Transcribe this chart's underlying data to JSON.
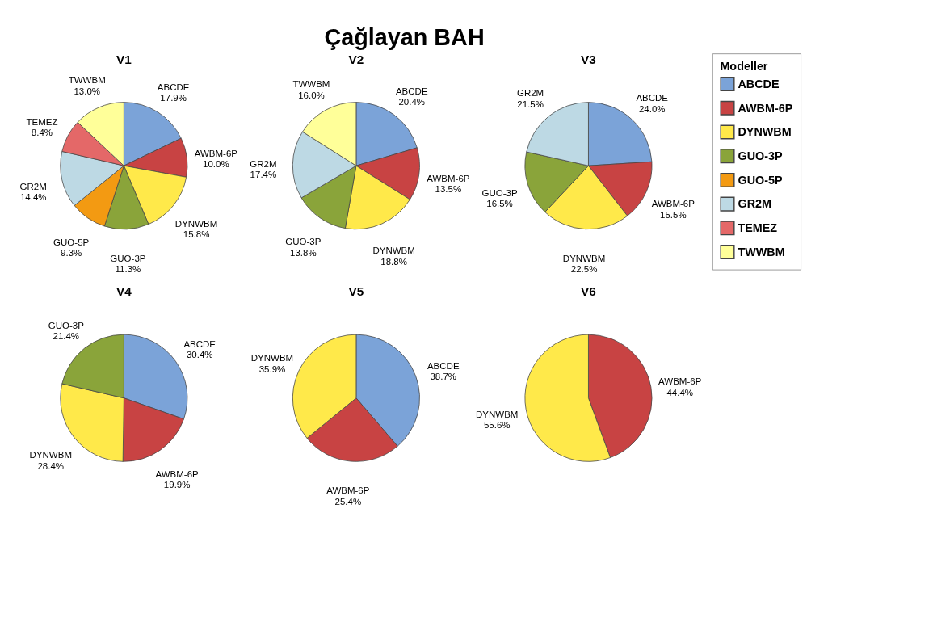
{
  "chart_data": [
    {
      "type": "pie",
      "title": "V1",
      "annotations": [
        "Çağlayan BAH"
      ],
      "legend": "right",
      "legend_title": "Modeller",
      "categories": [
        "ABCDE",
        "AWBM-6P",
        "DYNWBM",
        "GUO-3P",
        "GUO-5P",
        "GR2M",
        "TEMEZ",
        "TWWBM"
      ],
      "values": [
        17.9,
        10.0,
        15.8,
        11.3,
        9.3,
        14.4,
        8.4,
        13.0
      ],
      "value_labels": [
        "17.9%",
        "10.0%",
        "15.8%",
        "11.3%",
        "9.3%",
        "14.4%",
        "8.4%",
        "13.0%"
      ],
      "colors": [
        "#7ba3d8",
        "#c84343",
        "#ffe94a",
        "#8aa43a",
        "#f39a12",
        "#bdd9e4",
        "#e46868",
        "#ffff99"
      ]
    },
    {
      "type": "pie",
      "title": "V2",
      "categories": [
        "ABCDE",
        "AWBM-6P",
        "DYNWBM",
        "GUO-3P",
        "GR2M",
        "TWWBM"
      ],
      "values": [
        20.4,
        13.5,
        18.8,
        13.8,
        17.4,
        16.0
      ],
      "value_labels": [
        "20.4%",
        "13.5%",
        "18.8%",
        "13.8%",
        "17.4%",
        "16.0%"
      ],
      "colors": [
        "#7ba3d8",
        "#c84343",
        "#ffe94a",
        "#8aa43a",
        "#bdd9e4",
        "#ffff99"
      ]
    },
    {
      "type": "pie",
      "title": "V3",
      "categories": [
        "ABCDE",
        "AWBM-6P",
        "DYNWBM",
        "GUO-3P",
        "GR2M"
      ],
      "values": [
        24.0,
        15.5,
        22.5,
        16.5,
        21.5
      ],
      "value_labels": [
        "24.0%",
        "15.5%",
        "22.5%",
        "16.5%",
        "21.5%"
      ],
      "colors": [
        "#7ba3d8",
        "#c84343",
        "#ffe94a",
        "#8aa43a",
        "#bdd9e4"
      ]
    },
    {
      "type": "pie",
      "title": "V4",
      "categories": [
        "ABCDE",
        "AWBM-6P",
        "DYNWBM",
        "GUO-3P"
      ],
      "values": [
        30.4,
        19.9,
        28.4,
        21.4
      ],
      "value_labels": [
        "30.4%",
        "19.9%",
        "28.4%",
        "21.4%"
      ],
      "colors": [
        "#7ba3d8",
        "#c84343",
        "#ffe94a",
        "#8aa43a"
      ]
    },
    {
      "type": "pie",
      "title": "V5",
      "categories": [
        "ABCDE",
        "AWBM-6P",
        "DYNWBM"
      ],
      "values": [
        38.7,
        25.4,
        35.9
      ],
      "value_labels": [
        "38.7%",
        "25.4%",
        "35.9%"
      ],
      "colors": [
        "#7ba3d8",
        "#c84343",
        "#ffe94a"
      ]
    },
    {
      "type": "pie",
      "title": "V6",
      "categories": [
        "AWBM-6P",
        "DYNWBM"
      ],
      "values": [
        44.4,
        55.6
      ],
      "value_labels": [
        "44.4%",
        "55.6%"
      ],
      "colors": [
        "#c84343",
        "#ffe94a"
      ]
    }
  ]
}
